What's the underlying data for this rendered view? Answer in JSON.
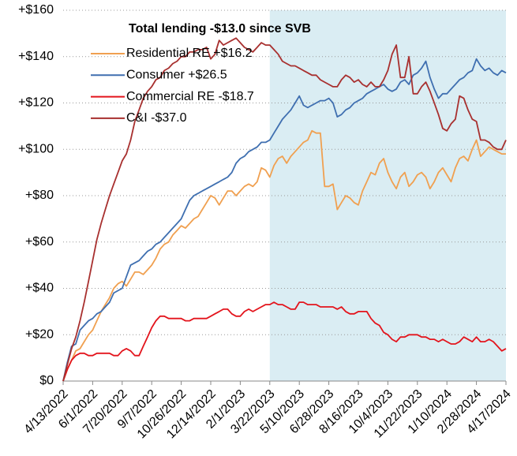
{
  "chart_data": {
    "type": "line",
    "legend_title": "Total lending -$13.0 since SVB",
    "categories": [
      "4/13/2022",
      null,
      null,
      null,
      null,
      null,
      null,
      "6/1/2022",
      null,
      null,
      null,
      null,
      null,
      null,
      "7/20/2022",
      null,
      null,
      null,
      null,
      null,
      null,
      "9/7/2022",
      null,
      null,
      null,
      null,
      null,
      null,
      "10/26/2022",
      null,
      null,
      null,
      null,
      null,
      null,
      "12/14/2022",
      null,
      null,
      null,
      null,
      null,
      null,
      "2/1/2023",
      null,
      null,
      null,
      null,
      null,
      null,
      "3/22/2023",
      null,
      null,
      null,
      null,
      null,
      null,
      "5/10/2023",
      null,
      null,
      null,
      null,
      null,
      null,
      "6/28/2023",
      null,
      null,
      null,
      null,
      null,
      null,
      "8/16/2023",
      null,
      null,
      null,
      null,
      null,
      null,
      "10/4/2023",
      null,
      null,
      null,
      null,
      null,
      null,
      "11/22/2023",
      null,
      null,
      null,
      null,
      null,
      null,
      "1/10/2024",
      null,
      null,
      null,
      null,
      null,
      null,
      "2/28/2024",
      null,
      null,
      null,
      null,
      null,
      null,
      "4/17/2024"
    ],
    "shade_from": "3/22/2023",
    "shade_color": "#daedf3",
    "series": [
      {
        "name": "Residential RE +$16.2",
        "color": "#f0a050",
        "values": [
          0,
          5,
          9,
          13,
          14,
          17,
          20,
          22,
          26,
          30,
          33,
          36,
          40,
          42,
          43,
          41,
          44,
          47,
          47,
          46,
          48,
          50,
          53,
          57,
          59,
          60,
          63,
          65,
          67,
          66,
          68,
          70,
          71,
          74,
          77,
          80,
          79,
          76,
          79,
          82,
          82,
          80,
          82,
          84,
          85,
          84,
          86,
          92,
          91,
          88,
          93,
          96,
          97,
          94,
          97,
          99,
          101,
          103,
          104,
          108,
          107,
          107,
          84,
          84,
          85,
          74,
          77,
          80,
          79,
          77,
          76,
          82,
          86,
          90,
          89,
          94,
          96,
          90,
          86,
          83,
          88,
          90,
          84,
          86,
          89,
          90,
          88,
          83,
          86,
          90,
          92,
          89,
          86,
          92,
          96,
          97,
          95,
          100,
          104,
          97,
          99,
          101,
          100,
          99,
          98,
          98
        ]
      },
      {
        "name": "Consumer +$26.5",
        "color": "#3f6fb0",
        "values": [
          0,
          8,
          15,
          16,
          22,
          24,
          26,
          27,
          29,
          30,
          32,
          34,
          38,
          39,
          40,
          45,
          50,
          51,
          52,
          54,
          56,
          57,
          59,
          60,
          62,
          64,
          66,
          68,
          70,
          74,
          78,
          80,
          81,
          82,
          83,
          84,
          85,
          86,
          87,
          88,
          90,
          94,
          96,
          97,
          99,
          100,
          101,
          103,
          103,
          104,
          107,
          110,
          113,
          115,
          117,
          120,
          123,
          119,
          118,
          119,
          120,
          121,
          121,
          122,
          120,
          114,
          115,
          117,
          118,
          120,
          121,
          122,
          124,
          125,
          126,
          127,
          128,
          126,
          125,
          126,
          129,
          130,
          128,
          132,
          133,
          135,
          138,
          131,
          126,
          122,
          124,
          124,
          126,
          128,
          130,
          131,
          133,
          134,
          139,
          136,
          134,
          135,
          133,
          132,
          134,
          133
        ]
      },
      {
        "name": "Commercial RE -$18.7",
        "color": "#e3141c",
        "values": [
          0,
          5,
          9,
          11,
          12,
          12,
          11,
          11,
          12,
          12,
          12,
          12,
          11,
          11,
          13,
          14,
          13,
          11,
          11,
          15,
          19,
          23,
          26,
          28,
          28,
          27,
          27,
          27,
          27,
          26,
          26,
          27,
          27,
          27,
          27,
          28,
          29,
          30,
          31,
          31,
          29,
          28,
          28,
          30,
          31,
          30,
          31,
          32,
          33,
          33,
          34,
          33,
          33,
          32,
          31,
          31,
          34,
          34,
          33,
          33,
          33,
          32,
          32,
          32,
          32,
          31,
          32,
          30,
          29,
          29,
          30,
          30,
          30,
          27,
          25,
          24,
          21,
          20,
          18,
          17,
          19,
          19,
          20,
          20,
          20,
          19,
          19,
          18,
          18,
          17,
          18,
          17,
          16,
          16,
          17,
          19,
          18,
          17,
          19,
          17,
          17,
          18,
          17,
          15,
          13,
          14
        ]
      },
      {
        "name": "C&I -$37.0",
        "color": "#a8302f",
        "values": [
          0,
          7,
          14,
          19,
          26,
          34,
          43,
          52,
          61,
          68,
          74,
          80,
          85,
          90,
          95,
          98,
          104,
          112,
          117,
          122,
          125,
          127,
          130,
          131,
          134,
          135,
          137,
          138,
          140,
          140,
          142,
          142,
          143,
          143,
          144,
          139,
          141,
          147,
          145,
          146,
          147,
          148,
          146,
          144,
          143,
          142,
          144,
          146,
          145,
          145,
          143,
          141,
          138,
          137,
          136,
          136,
          135,
          134,
          133,
          132,
          132,
          130,
          129,
          128,
          127,
          127,
          130,
          132,
          131,
          129,
          130,
          128,
          127,
          129,
          127,
          127,
          130,
          134,
          141,
          145,
          131,
          131,
          140,
          124,
          124,
          127,
          129,
          125,
          120,
          115,
          109,
          108,
          111,
          113,
          123,
          122,
          117,
          113,
          112,
          104,
          104,
          103,
          101,
          100,
          100,
          104
        ]
      }
    ],
    "ylim": [
      0,
      160
    ],
    "yticks": [
      {
        "value": 0,
        "label": "$0"
      },
      {
        "value": 20,
        "label": "+$20"
      },
      {
        "value": 40,
        "label": "+$40"
      },
      {
        "value": 60,
        "label": "+$60"
      },
      {
        "value": 80,
        "label": "+$80"
      },
      {
        "value": 100,
        "label": "+$100"
      },
      {
        "value": 120,
        "label": "+$120"
      },
      {
        "value": 140,
        "label": "+$140"
      },
      {
        "value": 160,
        "label": "+$160"
      }
    ],
    "grid": true
  }
}
